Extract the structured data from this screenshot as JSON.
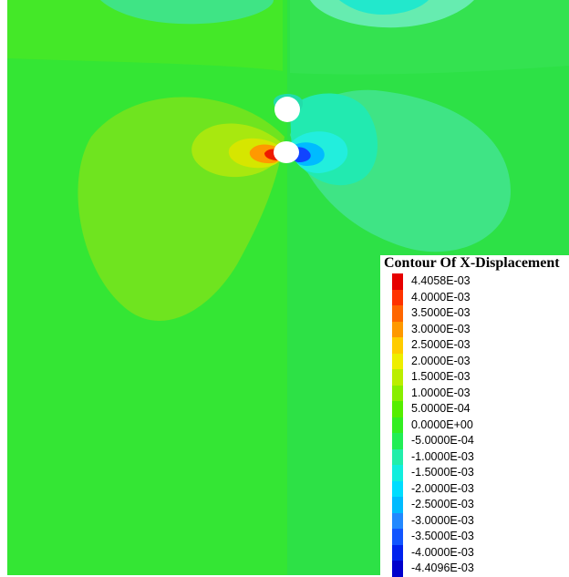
{
  "legend": {
    "title": "Contour Of X-Displacement",
    "entries": [
      {
        "label": "4.4058E-03",
        "color": "#e60000"
      },
      {
        "label": "4.0000E-03",
        "color": "#ff3300"
      },
      {
        "label": "3.5000E-03",
        "color": "#ff6600"
      },
      {
        "label": "3.0000E-03",
        "color": "#ff9900"
      },
      {
        "label": "2.5000E-03",
        "color": "#ffcc00"
      },
      {
        "label": "2.0000E-03",
        "color": "#eeee00"
      },
      {
        "label": "1.5000E-03",
        "color": "#bbee00"
      },
      {
        "label": "1.0000E-03",
        "color": "#88ee00"
      },
      {
        "label": "5.0000E-04",
        "color": "#55ee00"
      },
      {
        "label": "0.0000E+00",
        "color": "#33ee22"
      },
      {
        "label": "-5.0000E-04",
        "color": "#22ee55"
      },
      {
        "label": "-1.0000E-03",
        "color": "#22eeaa"
      },
      {
        "label": "-1.5000E-03",
        "color": "#11eedd"
      },
      {
        "label": "-2.0000E-03",
        "color": "#00ddff"
      },
      {
        "label": "-2.5000E-03",
        "color": "#00bbff"
      },
      {
        "label": "-3.0000E-03",
        "color": "#2288ff"
      },
      {
        "label": "-3.5000E-03",
        "color": "#1155ff"
      },
      {
        "label": "-4.0000E-03",
        "color": "#0022ee"
      },
      {
        "label": "-4.4096E-03",
        "color": "#0000cc"
      }
    ]
  },
  "field_colors": {
    "background": "#33e633",
    "right_half": "#2de044",
    "light_positive": "#6fe41f",
    "positive_mid": "#a8e80f",
    "positive_high": "#d6e600",
    "light_negative": "#3fe485",
    "negative_mid": "#22eab0",
    "negative_high": "#22eedd",
    "hole": "#ffffff"
  }
}
